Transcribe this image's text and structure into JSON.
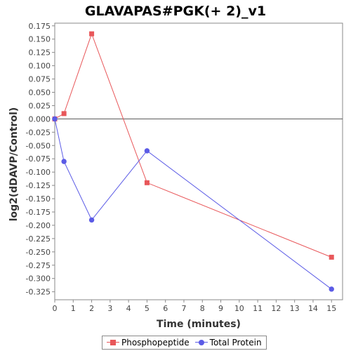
{
  "chart_data": {
    "type": "line",
    "title": "GLAVAPAS#PGK(+ 2)_v1",
    "xlabel": "Time (minutes)",
    "ylabel": "log2(dDAVP/Control)",
    "xlim": [
      0,
      15.6
    ],
    "ylim": [
      -0.34,
      0.18
    ],
    "x_ticks": [
      0,
      1,
      2,
      3,
      4,
      5,
      6,
      7,
      8,
      9,
      10,
      11,
      12,
      13,
      14,
      15
    ],
    "y_ticks": [
      0.175,
      0.15,
      0.125,
      0.1,
      0.075,
      0.05,
      0.025,
      0.0,
      -0.025,
      -0.05,
      -0.075,
      -0.1,
      -0.125,
      -0.15,
      -0.175,
      -0.2,
      -0.225,
      -0.25,
      -0.275,
      -0.3,
      -0.325
    ],
    "y_tick_labels": [
      "0.175",
      "0.150",
      "0.125",
      "0.100",
      "0.075",
      "0.050",
      "0.025",
      "0.000",
      "-0.025",
      "-0.050",
      "-0.075",
      "-0.100",
      "-0.125",
      "-0.150",
      "-0.175",
      "-0.200",
      "-0.225",
      "-0.250",
      "-0.275",
      "-0.300",
      "-0.325"
    ],
    "x_tick_labels": [
      "0",
      "1",
      "2",
      "3",
      "4",
      "5",
      "6",
      "7",
      "8",
      "9",
      "10",
      "11",
      "12",
      "13",
      "14",
      "15"
    ],
    "grid": false,
    "zero_line": true,
    "legend_position": "bottom-center",
    "series": [
      {
        "name": "Phosphopeptide",
        "color": "#e8575a",
        "marker": "square",
        "x": [
          0,
          0.5,
          2,
          5,
          15
        ],
        "y": [
          0.0,
          0.01,
          0.16,
          -0.12,
          -0.26
        ]
      },
      {
        "name": "Total Protein",
        "color": "#5b5be6",
        "marker": "circle",
        "x": [
          0,
          0.5,
          2,
          5,
          15
        ],
        "y": [
          0.0,
          -0.08,
          -0.19,
          -0.06,
          -0.32
        ]
      }
    ]
  }
}
